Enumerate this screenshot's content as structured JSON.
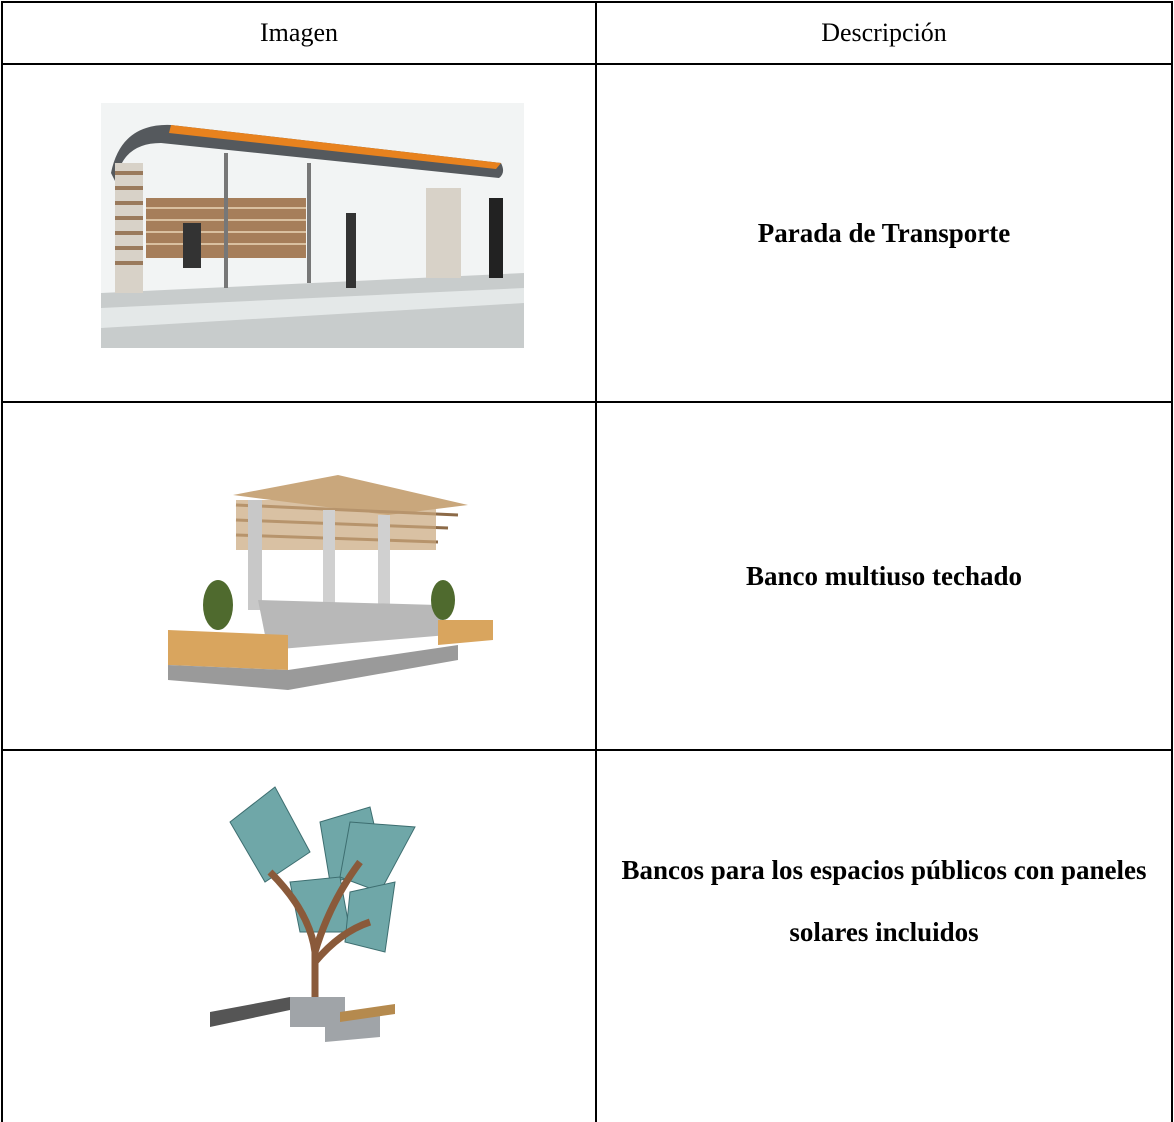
{
  "table": {
    "header": [
      "Imagen",
      "Descripción"
    ],
    "rows": [
      [
        "Parada de Transporte"
      ],
      [
        "Banco multiuso techado"
      ],
      [
        "Bancos para los espacios públicos con paneles solares incluidos"
      ]
    ]
  }
}
